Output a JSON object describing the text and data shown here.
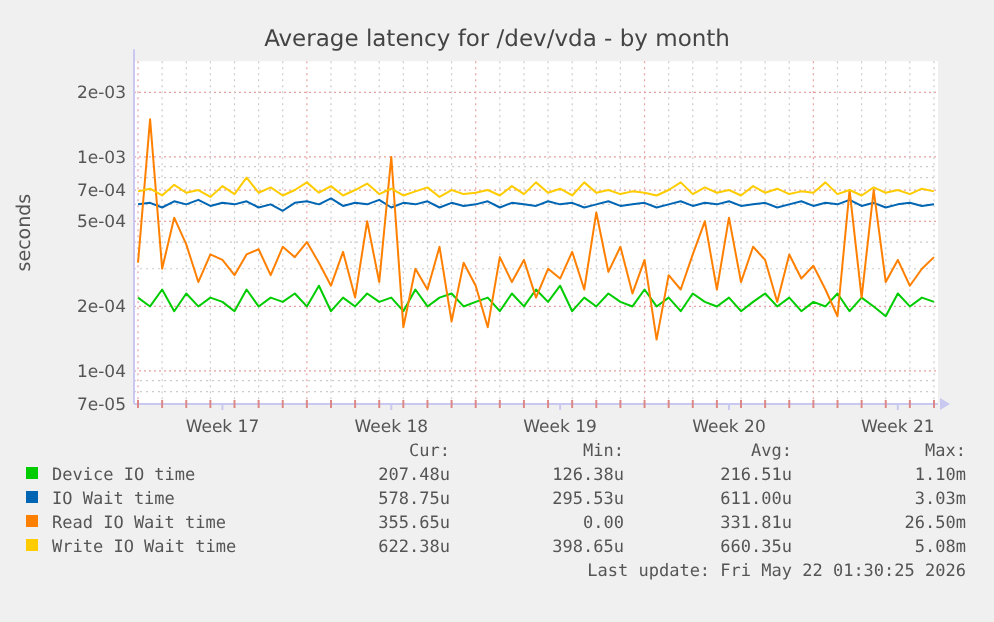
{
  "chart_data": {
    "type": "line",
    "title": "Average latency for /dev/vda - by month",
    "ylabel": "seconds",
    "log": true,
    "grid": true,
    "legend": "bottom",
    "marker": "none",
    "line_style": "solid",
    "x": [
      "2026-04-20T00:00",
      "2026-04-20T12:00",
      "2026-04-21T00:00",
      "2026-04-21T12:00",
      "2026-04-22T00:00",
      "2026-04-22T12:00",
      "2026-04-23T00:00",
      "2026-04-23T12:00",
      "2026-04-24T00:00",
      "2026-04-24T12:00",
      "2026-04-25T00:00",
      "2026-04-25T12:00",
      "2026-04-26T00:00",
      "2026-04-26T12:00",
      "2026-04-27T00:00",
      "2026-04-27T12:00",
      "2026-04-28T00:00",
      "2026-04-28T12:00",
      "2026-04-29T00:00",
      "2026-04-29T12:00",
      "2026-04-30T00:00",
      "2026-04-30T12:00",
      "2026-05-01T00:00",
      "2026-05-01T12:00",
      "2026-05-02T00:00",
      "2026-05-02T12:00",
      "2026-05-03T00:00",
      "2026-05-03T12:00",
      "2026-05-04T00:00",
      "2026-05-04T12:00",
      "2026-05-05T00:00",
      "2026-05-05T12:00",
      "2026-05-06T00:00",
      "2026-05-06T12:00",
      "2026-05-07T00:00",
      "2026-05-07T12:00",
      "2026-05-08T00:00",
      "2026-05-08T12:00",
      "2026-05-09T00:00",
      "2026-05-09T12:00",
      "2026-05-10T00:00",
      "2026-05-10T12:00",
      "2026-05-11T00:00",
      "2026-05-11T12:00",
      "2026-05-12T00:00",
      "2026-05-12T12:00",
      "2026-05-13T00:00",
      "2026-05-13T12:00",
      "2026-05-14T00:00",
      "2026-05-14T12:00",
      "2026-05-15T00:00",
      "2026-05-15T12:00",
      "2026-05-16T00:00",
      "2026-05-16T12:00",
      "2026-05-17T00:00",
      "2026-05-17T12:00",
      "2026-05-18T00:00",
      "2026-05-18T12:00",
      "2026-05-19T00:00",
      "2026-05-19T12:00",
      "2026-05-20T00:00",
      "2026-05-20T12:00",
      "2026-05-21T00:00",
      "2026-05-21T12:00",
      "2026-05-22T00:00",
      "2026-05-22T12:00",
      "2026-05-23T00:00"
    ],
    "xlim": [
      "2026-04-19T20:00",
      "2026-05-23T04:00"
    ],
    "xticks": [
      {
        "value": "2026-04-20",
        "label": null
      },
      {
        "value": "2026-04-21",
        "label": null
      },
      {
        "value": "2026-04-22",
        "label": null
      },
      {
        "value": "2026-04-23",
        "label": null
      },
      {
        "value": "2026-04-23T12:00",
        "label": "Week 17"
      },
      {
        "value": "2026-04-24",
        "label": null
      },
      {
        "value": "2026-04-25",
        "label": null
      },
      {
        "value": "2026-04-26",
        "label": null
      },
      {
        "value": "2026-04-27",
        "label": null
      },
      {
        "value": "2026-04-28",
        "label": null
      },
      {
        "value": "2026-04-29",
        "label": null
      },
      {
        "value": "2026-04-30",
        "label": null
      },
      {
        "value": "2026-04-30T12:00",
        "label": "Week 18"
      },
      {
        "value": "2026-05-01",
        "label": null
      },
      {
        "value": "2026-05-02",
        "label": null
      },
      {
        "value": "2026-05-03",
        "label": null
      },
      {
        "value": "2026-05-04",
        "label": null
      },
      {
        "value": "2026-05-05",
        "label": null
      },
      {
        "value": "2026-05-06",
        "label": null
      },
      {
        "value": "2026-05-07",
        "label": null
      },
      {
        "value": "2026-05-07T12:00",
        "label": "Week 19"
      },
      {
        "value": "2026-05-08",
        "label": null
      },
      {
        "value": "2026-05-09",
        "label": null
      },
      {
        "value": "2026-05-10",
        "label": null
      },
      {
        "value": "2026-05-11",
        "label": null
      },
      {
        "value": "2026-05-12",
        "label": null
      },
      {
        "value": "2026-05-13",
        "label": null
      },
      {
        "value": "2026-05-14",
        "label": null
      },
      {
        "value": "2026-05-14T12:00",
        "label": "Week 20"
      },
      {
        "value": "2026-05-15",
        "label": null
      },
      {
        "value": "2026-05-16",
        "label": null
      },
      {
        "value": "2026-05-17",
        "label": null
      },
      {
        "value": "2026-05-18",
        "label": null
      },
      {
        "value": "2026-05-19",
        "label": null
      },
      {
        "value": "2026-05-20",
        "label": null
      },
      {
        "value": "2026-05-21",
        "label": null
      },
      {
        "value": "2026-05-21T12:00",
        "label": "Week 21"
      },
      {
        "value": "2026-05-22",
        "label": null
      },
      {
        "value": "2026-05-23",
        "label": null
      }
    ],
    "ylim": [
      7e-05,
      0.0028
    ],
    "yticks": [
      {
        "value": 7e-05,
        "label": "7e-05"
      },
      {
        "value": 8e-05,
        "label": null
      },
      {
        "value": 9e-05,
        "label": null
      },
      {
        "value": 0.0001,
        "label": "1e-04"
      },
      {
        "value": 0.0002,
        "label": "2e-04"
      },
      {
        "value": 0.0003,
        "label": null
      },
      {
        "value": 0.0004,
        "label": null
      },
      {
        "value": 0.0005,
        "label": "5e-04"
      },
      {
        "value": 0.0006,
        "label": null
      },
      {
        "value": 0.0007,
        "label": "7e-04"
      },
      {
        "value": 0.0008,
        "label": null
      },
      {
        "value": 0.0009,
        "label": null
      },
      {
        "value": 0.001,
        "label": "1e-03"
      },
      {
        "value": 0.002,
        "label": "2e-03"
      }
    ],
    "series": [
      {
        "name": "Device IO time",
        "color": "#00cc00",
        "values": [
          0.00022,
          0.0002,
          0.00024,
          0.00019,
          0.00023,
          0.0002,
          0.00022,
          0.00021,
          0.00019,
          0.00024,
          0.0002,
          0.00022,
          0.00021,
          0.00023,
          0.0002,
          0.00025,
          0.00019,
          0.00022,
          0.0002,
          0.00023,
          0.00021,
          0.00022,
          0.00019,
          0.00024,
          0.0002,
          0.00022,
          0.00023,
          0.0002,
          0.00021,
          0.00022,
          0.00019,
          0.00023,
          0.0002,
          0.00024,
          0.00021,
          0.00025,
          0.00019,
          0.00022,
          0.0002,
          0.00023,
          0.00021,
          0.0002,
          0.00024,
          0.0002,
          0.00022,
          0.00019,
          0.00023,
          0.00021,
          0.0002,
          0.00022,
          0.00019,
          0.00021,
          0.00023,
          0.0002,
          0.00022,
          0.00019,
          0.00021,
          0.0002,
          0.00023,
          0.00019,
          0.00022,
          0.0002,
          0.00018,
          0.00023,
          0.0002,
          0.00022,
          0.00021
        ]
      },
      {
        "name": "IO Wait time",
        "color": "#0066b3",
        "values": [
          0.0006,
          0.00061,
          0.00058,
          0.00062,
          0.0006,
          0.00063,
          0.00059,
          0.00061,
          0.0006,
          0.00062,
          0.00058,
          0.0006,
          0.00056,
          0.00061,
          0.00062,
          0.0006,
          0.00064,
          0.00059,
          0.00061,
          0.0006,
          0.00063,
          0.00058,
          0.00061,
          0.0006,
          0.00062,
          0.00058,
          0.00061,
          0.00059,
          0.0006,
          0.00062,
          0.00058,
          0.00061,
          0.0006,
          0.00059,
          0.00062,
          0.0006,
          0.00061,
          0.00058,
          0.0006,
          0.00062,
          0.00059,
          0.0006,
          0.00061,
          0.00058,
          0.0006,
          0.00062,
          0.00059,
          0.00061,
          0.0006,
          0.00062,
          0.00059,
          0.0006,
          0.00061,
          0.00058,
          0.0006,
          0.00062,
          0.00059,
          0.00061,
          0.0006,
          0.00063,
          0.00059,
          0.00061,
          0.00058,
          0.0006,
          0.00061,
          0.00059,
          0.0006
        ]
      },
      {
        "name": "Read IO Wait time",
        "color": "#ff8000",
        "values": [
          0.00032,
          0.0015,
          0.0003,
          0.00052,
          0.00039,
          0.00026,
          0.00035,
          0.00033,
          0.00028,
          0.00035,
          0.00037,
          0.00028,
          0.00038,
          0.00034,
          0.0004,
          0.00032,
          0.00025,
          0.00036,
          0.00022,
          0.0005,
          0.00026,
          0.001,
          0.00016,
          0.0003,
          0.00024,
          0.00038,
          0.00017,
          0.00032,
          0.00025,
          0.00016,
          0.00034,
          0.00026,
          0.00033,
          0.00022,
          0.0003,
          0.00027,
          0.00036,
          0.00024,
          0.00055,
          0.00029,
          0.00038,
          0.00023,
          0.00033,
          0.00014,
          0.00028,
          0.00024,
          0.00035,
          0.0005,
          0.00024,
          0.00052,
          0.00026,
          0.00038,
          0.00033,
          0.00021,
          0.00035,
          0.00027,
          0.00031,
          0.00024,
          0.00018,
          0.0007,
          0.00022,
          0.0007,
          0.00026,
          0.00033,
          0.00025,
          0.0003,
          0.00034
        ]
      },
      {
        "name": "Write IO Wait time",
        "color": "#ffcc00",
        "values": [
          0.00069,
          0.00071,
          0.00066,
          0.00074,
          0.00068,
          0.0007,
          0.00065,
          0.00073,
          0.00067,
          0.0008,
          0.00068,
          0.00072,
          0.00066,
          0.0007,
          0.00076,
          0.00068,
          0.00073,
          0.00066,
          0.0007,
          0.00075,
          0.00067,
          0.00071,
          0.00066,
          0.00069,
          0.00072,
          0.00065,
          0.0007,
          0.00067,
          0.00068,
          0.0007,
          0.00066,
          0.00073,
          0.00067,
          0.00076,
          0.00068,
          0.00071,
          0.00066,
          0.00076,
          0.00068,
          0.0007,
          0.00067,
          0.00069,
          0.00068,
          0.00066,
          0.0007,
          0.00076,
          0.00067,
          0.00072,
          0.00068,
          0.0007,
          0.00066,
          0.00073,
          0.00068,
          0.00071,
          0.00067,
          0.00069,
          0.00068,
          0.00076,
          0.00067,
          0.0007,
          0.00066,
          0.00072,
          0.00068,
          0.0007,
          0.00067,
          0.00071,
          0.00069
        ]
      }
    ],
    "annotations": [
      "Cur:",
      "Min:",
      "Avg:",
      "Max:",
      "207.48u",
      "126.38u",
      "216.51u",
      "1.10m",
      "578.75u",
      "295.53u",
      "611.00u",
      "3.03m",
      "355.65u",
      "0.00",
      "331.81u",
      "26.50m",
      "622.38u",
      "398.65u",
      "660.35u",
      "5.08m",
      "Last update: Fri May 22 01:30:25 2026"
    ]
  }
}
